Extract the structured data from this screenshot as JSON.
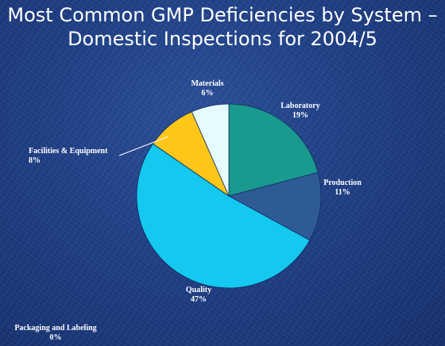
{
  "chart_data": {
    "type": "pie",
    "title_lines": [
      "Most Common GMP Deficiencies by System –",
      "Domestic Inspections for 2004/5"
    ],
    "slices": [
      {
        "name": "Laboratory",
        "value": 19,
        "label": "19%",
        "color": "#1a9a8f"
      },
      {
        "name": "Production",
        "value": 11,
        "label": "11%",
        "color": "#2e5a96"
      },
      {
        "name": "Quality",
        "value": 47,
        "label": "47%",
        "color": "#14c8ef"
      },
      {
        "name": "Packaging and Labeling",
        "value": 0,
        "label": "0%",
        "color": "#9966cc"
      },
      {
        "name": "Facilities & Equipment",
        "value": 8,
        "label": "8%",
        "color": "#ffc61a"
      },
      {
        "name": "Materials",
        "value": 6,
        "label": "6%",
        "color": "#e6fbff"
      }
    ]
  }
}
